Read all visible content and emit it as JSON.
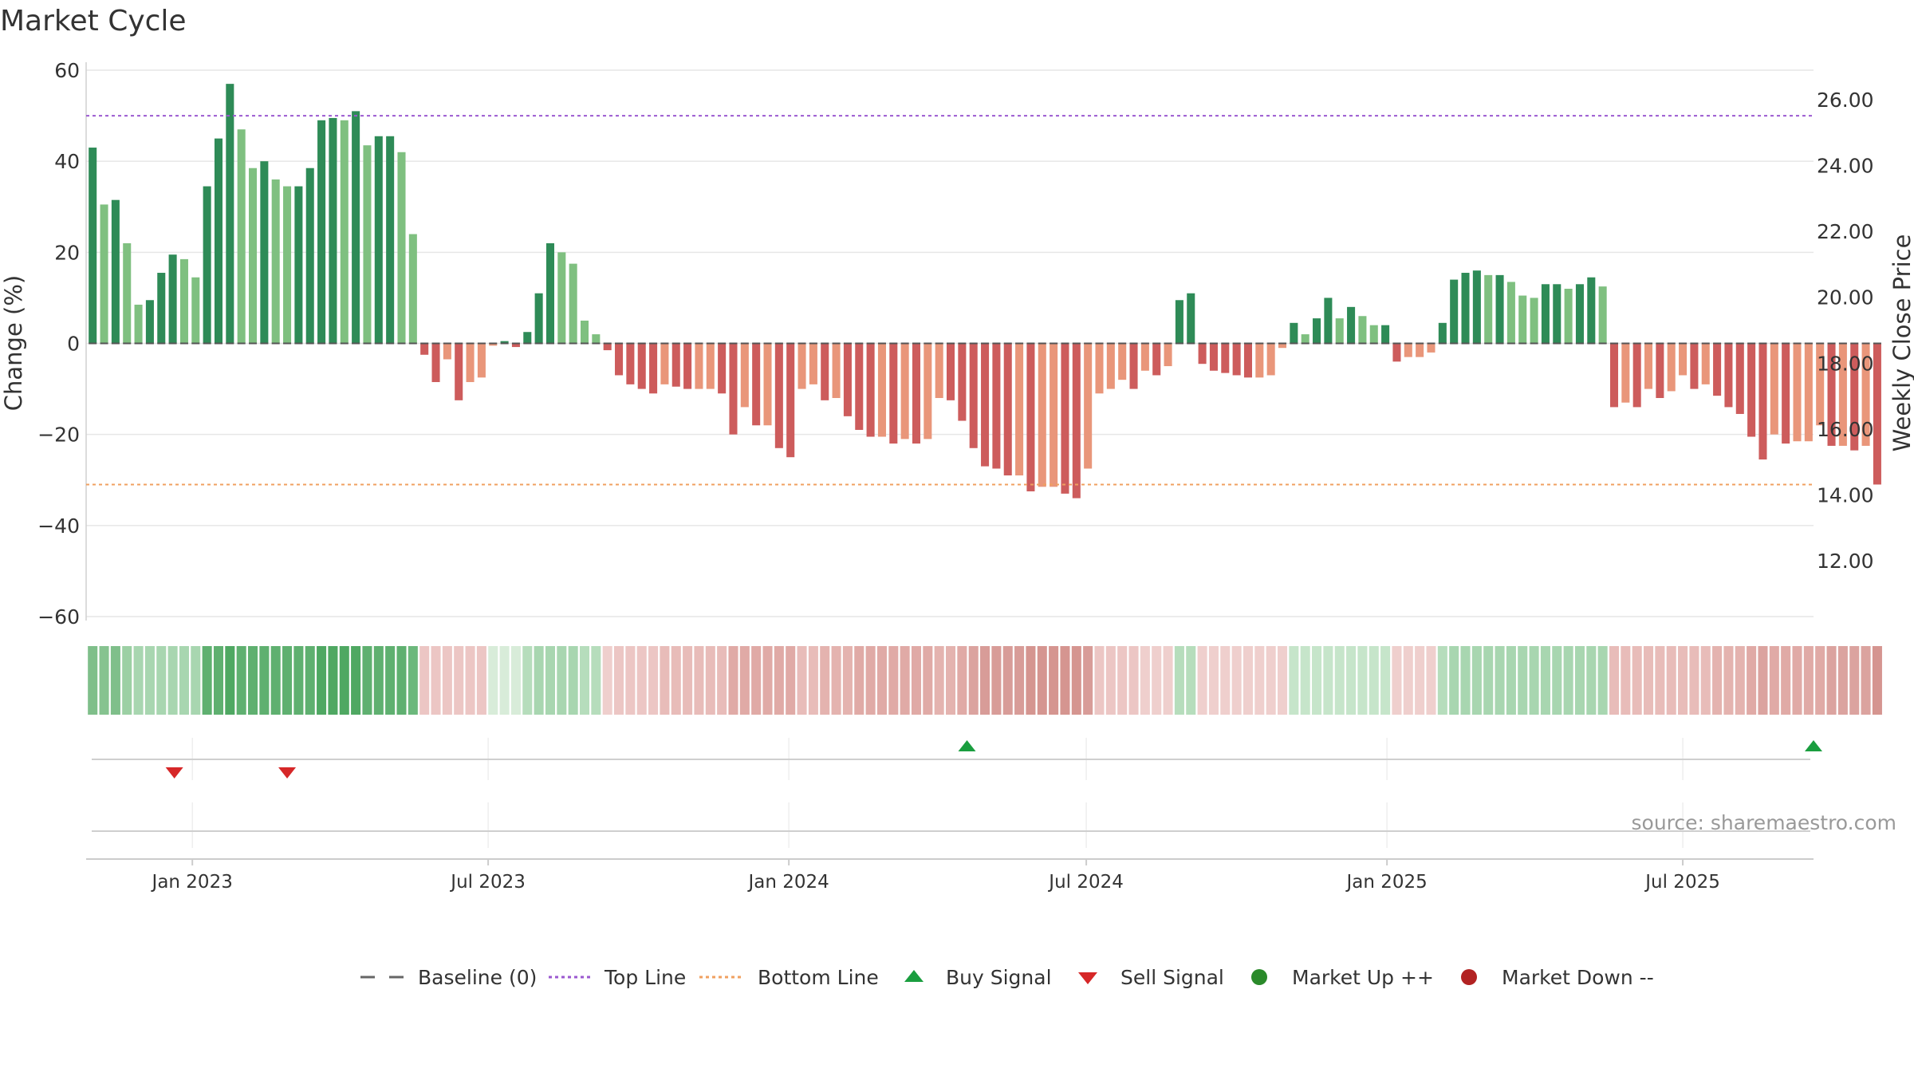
{
  "title": "Market Cycle",
  "source": "source: sharemaestro.com",
  "colors": {
    "up_dark": "#2e8b57",
    "up_light": "#7fc080",
    "down_dark": "#cd5c5c",
    "down_light": "#e9967a",
    "top_line": "#9b59d0",
    "bottom_line": "#f0a060",
    "buy": "#1a9e3f",
    "sell": "#d62728",
    "market_up": "#2a8a2a",
    "market_down": "#b22222",
    "grid": "#e6e6e6",
    "axis_text": "#333333"
  },
  "chart_data": {
    "type": "bar",
    "title": "Market Cycle",
    "ylabel_left": "Change (%)",
    "ylabel_right": "Weekly Close Price",
    "ylim_left": [
      -60,
      60
    ],
    "yticks_left": [
      60,
      40,
      20,
      0,
      -20,
      -40,
      -60
    ],
    "ytick_labels_left": [
      "60",
      "40",
      "20",
      "0",
      "−20",
      "−40",
      "−60"
    ],
    "ylim_right": [
      10.3,
      26.9
    ],
    "yticks_right": [
      26,
      24,
      22,
      20,
      18,
      16,
      14,
      12
    ],
    "ytick_labels_right": [
      "26.00",
      "24.00",
      "22.00",
      "20.00",
      "18.00",
      "16.00",
      "14.00",
      "12.00"
    ],
    "x_range": [
      "2022-10-28",
      "2025-09-19"
    ],
    "xtick_dates": [
      "2023-01-01",
      "2023-07-01",
      "2024-01-01",
      "2024-07-01",
      "2025-01-01",
      "2025-07-01"
    ],
    "xtick_labels": [
      "Jan 2023",
      "Jul 2023",
      "Jan 2024",
      "Jul 2024",
      "Jan 2025",
      "Jul 2025"
    ],
    "start_date": "2022-11-01",
    "bar_interval": "weekly",
    "top_line": 50,
    "bottom_line": -31,
    "values": [
      43,
      30.5,
      31.5,
      22,
      8.5,
      9.5,
      15.5,
      19.5,
      18.5,
      14.5,
      34.5,
      45,
      57,
      47,
      38.5,
      40,
      36,
      34.5,
      34.5,
      38.5,
      49,
      49.5,
      49,
      51,
      43.5,
      45.5,
      45.5,
      42,
      24,
      -2.5,
      -8.5,
      -3.5,
      -12.5,
      -8.5,
      -7.5,
      -0.5,
      0.5,
      -0.8,
      2.5,
      11,
      22,
      20,
      17.5,
      5,
      2,
      -1.5,
      -7,
      -9,
      -10,
      -11,
      -9,
      -9.5,
      -10,
      -10,
      -10,
      -11,
      -20,
      -14,
      -18,
      -18,
      -23,
      -25,
      -10,
      -9,
      -12.5,
      -12,
      -16,
      -19,
      -20.5,
      -20.5,
      -22,
      -21,
      -22,
      -21,
      -12,
      -12.5,
      -17,
      -23,
      -27,
      -27.5,
      -29,
      -29,
      -32.5,
      -31.5,
      -31.5,
      -33,
      -34,
      -27.5,
      -11,
      -10,
      -8,
      -10,
      -6,
      -7,
      -5,
      9.5,
      11,
      -4.5,
      -6,
      -6.5,
      -7,
      -7.5,
      -7.5,
      -7,
      -1,
      4.5,
      2,
      5.5,
      10,
      5.5,
      8,
      6,
      4,
      4,
      -4,
      -3,
      -3,
      -2,
      4.5,
      14,
      15.5,
      16,
      15,
      15,
      13.5,
      10.5,
      10,
      13,
      13,
      12,
      13,
      14.5,
      12.5,
      -14,
      -13,
      -14,
      -10,
      -12,
      -10.5,
      -7,
      -10,
      -9,
      -11.5,
      -14,
      -15.5,
      -20.5,
      -25.5,
      -20,
      -22,
      -21.5,
      -21.5,
      -18,
      -22.5,
      -22.5,
      -23.5,
      -22.5,
      -31
    ],
    "status_bar_colors": [
      "#7fbf8a",
      "#86c390",
      "#7fbf8a",
      "#9cd0a4",
      "#a8d6b0",
      "#a8d6b0",
      "#a8d6b0",
      "#a8d6b0",
      "#a8d6b0",
      "#a8d6b0",
      "#5fb070",
      "#5fb070",
      "#4fa862",
      "#5fb070",
      "#5fb070",
      "#5fb070",
      "#5fb070",
      "#5fb070",
      "#5fb070",
      "#5fb070",
      "#4fa862",
      "#4fa862",
      "#4fa862",
      "#4fa862",
      "#5fb070",
      "#5fb070",
      "#5fb070",
      "#5fb070",
      "#6cb87c",
      "#ecc6c4",
      "#ecc6c4",
      "#ecc6c4",
      "#ecc6c4",
      "#ecc6c4",
      "#ecc6c4",
      "#d8ecd9",
      "#d8ecd9",
      "#d8ecd9",
      "#b6ddbc",
      "#a8d6b0",
      "#a8d6b0",
      "#a8d6b0",
      "#a8d6b0",
      "#b6ddbc",
      "#b6ddbc",
      "#efcfcd",
      "#ecc6c4",
      "#ecc6c4",
      "#ecc6c4",
      "#ecc6c4",
      "#e8bcb9",
      "#e8bcb9",
      "#e8bcb9",
      "#e8bcb9",
      "#e8bcb9",
      "#e8bcb9",
      "#e0aaa6",
      "#e0aaa6",
      "#e0aaa6",
      "#e0aaa6",
      "#e0aaa6",
      "#e0aaa6",
      "#e8bcb9",
      "#e8bcb9",
      "#e4b3af",
      "#e4b3af",
      "#e4b3af",
      "#e0aaa6",
      "#e0aaa6",
      "#e0aaa6",
      "#e0aaa6",
      "#e0aaa6",
      "#e0aaa6",
      "#e0aaa6",
      "#e4b3af",
      "#e4b3af",
      "#e0aaa6",
      "#dba39f",
      "#d89c98",
      "#d89c98",
      "#d89c98",
      "#d89c98",
      "#d59590",
      "#d59590",
      "#d59590",
      "#d59590",
      "#d59590",
      "#d89c98",
      "#ecc6c4",
      "#ecc6c4",
      "#ecc6c4",
      "#ecc6c4",
      "#efcfcd",
      "#efcfcd",
      "#efcfcd",
      "#b6ddbc",
      "#b6ddbc",
      "#efcfcd",
      "#efcfcd",
      "#efcfcd",
      "#efcfcd",
      "#efcfcd",
      "#efcfcd",
      "#efcfcd",
      "#efcfcd",
      "#c6e5ca",
      "#c6e5ca",
      "#c6e5ca",
      "#c6e5ca",
      "#c6e5ca",
      "#c6e5ca",
      "#c6e5ca",
      "#c6e5ca",
      "#c6e5ca",
      "#efcfcd",
      "#efcfcd",
      "#efcfcd",
      "#efcfcd",
      "#b6ddbc",
      "#a8d6b0",
      "#a8d6b0",
      "#a8d6b0",
      "#a8d6b0",
      "#a8d6b0",
      "#a8d6b0",
      "#a8d6b0",
      "#a8d6b0",
      "#a8d6b0",
      "#a8d6b0",
      "#a8d6b0",
      "#a8d6b0",
      "#a8d6b0",
      "#a8d6b0",
      "#e8bcb9",
      "#e8bcb9",
      "#e8bcb9",
      "#e8bcb9",
      "#e8bcb9",
      "#e8bcb9",
      "#e8bcb9",
      "#e8bcb9",
      "#e8bcb9",
      "#e4b3af",
      "#e4b3af",
      "#e4b3af",
      "#e0aaa6",
      "#dba39f",
      "#e0aaa6",
      "#e0aaa6",
      "#e0aaa6",
      "#e0aaa6",
      "#e0aaa6",
      "#dba39f",
      "#dba39f",
      "#dba39f",
      "#dba39f",
      "#d59590"
    ],
    "buy_signals": [
      "2024-04-19",
      "2025-09-19"
    ],
    "sell_signals": [
      "2022-12-21",
      "2023-02-28"
    ],
    "legend": [
      {
        "label": "Baseline (0)",
        "symbol": "dashed",
        "color": "#666666"
      },
      {
        "label": "Top Line",
        "symbol": "dotted",
        "color": "#9b59d0"
      },
      {
        "label": "Bottom Line",
        "symbol": "dotted",
        "color": "#f0a060"
      },
      {
        "label": "Buy Signal",
        "symbol": "triangle-up",
        "color": "#1a9e3f"
      },
      {
        "label": "Sell Signal",
        "symbol": "triangle-down",
        "color": "#d62728"
      },
      {
        "label": "Market Up ++",
        "symbol": "circle",
        "color": "#2a8a2a"
      },
      {
        "label": "Market Down --",
        "symbol": "circle",
        "color": "#b22222"
      }
    ]
  }
}
